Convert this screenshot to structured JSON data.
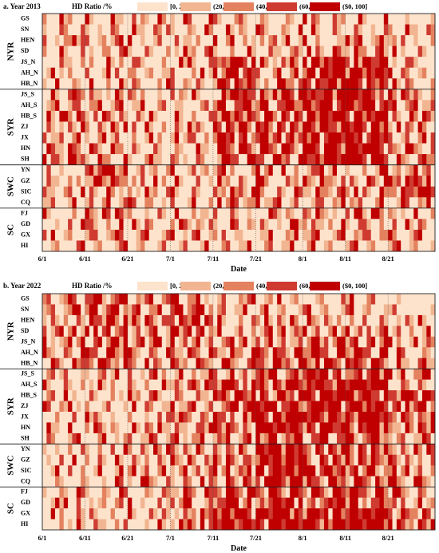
{
  "figure": {
    "legend_title": "HD Ratio /%",
    "xlabel": "Date",
    "bins": [
      {
        "label": "[0, 20]",
        "color": "#fde3cc"
      },
      {
        "label": "(20, 40]",
        "color": "#f2b591"
      },
      {
        "label": "(40, 60]",
        "color": "#e4825f"
      },
      {
        "label": "(60, 80]",
        "color": "#cf3b31"
      },
      {
        "label": "($0, 100]",
        "color": "#c00000"
      }
    ]
  },
  "chart_data": [
    {
      "type": "heatmap",
      "title": "a. Year 2013",
      "xlabel": "Date",
      "x_tick_labels": [
        "6/1",
        "6/11",
        "6/21",
        "7/1",
        "7/11",
        "7/21",
        "8/1",
        "8/11",
        "8/21"
      ],
      "x_range": [
        "6/1",
        "8/31"
      ],
      "groups": [
        {
          "name": "NYR",
          "rows": [
            "GS",
            "SN",
            "HEN",
            "SD",
            "JS_N",
            "AH_N",
            "HB_N"
          ]
        },
        {
          "name": "SYR",
          "rows": [
            "JS_S",
            "AH_S",
            "HB_S",
            "ZJ",
            "JX",
            "HN",
            "SH"
          ]
        },
        {
          "name": "SWC",
          "rows": [
            "YN",
            "GZ",
            "SIC",
            "CQ"
          ]
        },
        {
          "name": "SC",
          "rows": [
            "FJ",
            "GD",
            "GX",
            "HI"
          ]
        }
      ],
      "value_bins": [
        "[0, 20]",
        "(20, 40]",
        "(40, 60]",
        "(60, 80]",
        "($0, 100]"
      ],
      "intensity_by_row_and_period": {
        "rows": [
          "GS",
          "SN",
          "HEN",
          "SD",
          "JS_N",
          "AH_N",
          "HB_N",
          "JS_S",
          "AH_S",
          "HB_S",
          "ZJ",
          "JX",
          "HN",
          "SH",
          "YN",
          "GZ",
          "SIC",
          "CQ",
          "FJ",
          "GD",
          "GX",
          "HI"
        ],
        "periods": [
          "6/1-6/10",
          "6/11-6/20",
          "6/21-6/30",
          "7/1-7/10",
          "7/11-7/20",
          "7/21-7/31",
          "8/1-8/10",
          "8/11-8/20",
          "8/21-8/31"
        ],
        "values": [
          [
            1,
            1,
            1,
            1,
            1,
            1,
            1,
            1,
            0
          ],
          [
            1,
            1,
            1,
            1,
            1,
            1,
            1,
            1,
            1
          ],
          [
            2,
            1,
            1,
            1,
            2,
            1,
            1,
            2,
            1
          ],
          [
            1,
            1,
            1,
            1,
            1,
            1,
            2,
            2,
            1
          ],
          [
            1,
            1,
            1,
            1,
            3,
            2,
            4,
            4,
            1
          ],
          [
            1,
            1,
            1,
            1,
            3,
            2,
            4,
            4,
            1
          ],
          [
            1,
            1,
            1,
            1,
            3,
            2,
            4,
            4,
            1
          ],
          [
            2,
            2,
            1,
            1,
            3,
            3,
            4,
            4,
            2
          ],
          [
            2,
            2,
            1,
            1,
            3,
            3,
            4,
            4,
            2
          ],
          [
            2,
            2,
            1,
            1,
            3,
            3,
            4,
            4,
            2
          ],
          [
            2,
            2,
            1,
            1,
            3,
            3,
            4,
            4,
            2
          ],
          [
            2,
            2,
            1,
            1,
            3,
            3,
            4,
            4,
            2
          ],
          [
            2,
            2,
            1,
            1,
            3,
            3,
            4,
            4,
            2
          ],
          [
            2,
            2,
            1,
            1,
            3,
            3,
            4,
            4,
            2
          ],
          [
            0,
            3,
            1,
            1,
            1,
            2,
            2,
            1,
            2
          ],
          [
            1,
            3,
            1,
            1,
            1,
            2,
            2,
            2,
            3
          ],
          [
            1,
            2,
            1,
            1,
            2,
            2,
            2,
            2,
            3
          ],
          [
            1,
            2,
            1,
            1,
            2,
            2,
            1,
            2,
            1
          ],
          [
            1,
            2,
            1,
            1,
            1,
            1,
            2,
            2,
            1
          ],
          [
            1,
            2,
            1,
            1,
            1,
            1,
            2,
            2,
            1
          ],
          [
            1,
            2,
            1,
            1,
            1,
            1,
            2,
            2,
            1
          ],
          [
            1,
            1,
            1,
            1,
            1,
            1,
            1,
            1,
            1
          ]
        ]
      }
    },
    {
      "type": "heatmap",
      "title": "b. Year 2022",
      "xlabel": "Date",
      "x_tick_labels": [
        "6/1",
        "6/11",
        "6/21",
        "7/1",
        "7/11",
        "7/21",
        "8/1",
        "8/11",
        "8/21"
      ],
      "x_range": [
        "6/1",
        "8/31"
      ],
      "groups": [
        {
          "name": "NYR",
          "rows": [
            "GS",
            "SN",
            "HEN",
            "SD",
            "JS_N",
            "AH_N",
            "HB_N"
          ]
        },
        {
          "name": "SYR",
          "rows": [
            "JS_S",
            "AH_S",
            "HB_S",
            "ZJ",
            "JX",
            "HN",
            "SH"
          ]
        },
        {
          "name": "SWC",
          "rows": [
            "YN",
            "GZ",
            "SIC",
            "CQ"
          ]
        },
        {
          "name": "SC",
          "rows": [
            "FJ",
            "GD",
            "GX",
            "HI"
          ]
        }
      ],
      "value_bins": [
        "[0, 20]",
        "(20, 40]",
        "(40, 60]",
        "(60, 80]",
        "($0, 100]"
      ],
      "intensity_by_row_and_period": {
        "rows": [
          "GS",
          "SN",
          "HEN",
          "SD",
          "JS_N",
          "AH_N",
          "HB_N",
          "JS_S",
          "AH_S",
          "HB_S",
          "ZJ",
          "JX",
          "HN",
          "SH",
          "YN",
          "GZ",
          "SIC",
          "CQ",
          "FJ",
          "GD",
          "GX",
          "HI"
        ],
        "periods": [
          "6/1-6/10",
          "6/11-6/20",
          "6/21-6/30",
          "7/1-7/10",
          "7/11-7/20",
          "7/21-7/31",
          "8/1-8/10",
          "8/11-8/20",
          "8/21-8/31"
        ],
        "values": [
          [
            2,
            3,
            2,
            2,
            1,
            1,
            1,
            1,
            0
          ],
          [
            2,
            3,
            2,
            3,
            1,
            1,
            1,
            1,
            0
          ],
          [
            2,
            3,
            2,
            3,
            1,
            2,
            2,
            1,
            1
          ],
          [
            2,
            3,
            2,
            3,
            1,
            2,
            2,
            2,
            1
          ],
          [
            2,
            3,
            2,
            2,
            2,
            2,
            3,
            3,
            1
          ],
          [
            2,
            3,
            2,
            2,
            2,
            3,
            3,
            3,
            1
          ],
          [
            2,
            3,
            2,
            2,
            2,
            3,
            3,
            3,
            1
          ],
          [
            1,
            1,
            1,
            2,
            2,
            3,
            3,
            3,
            2
          ],
          [
            1,
            1,
            1,
            2,
            3,
            3,
            4,
            4,
            2
          ],
          [
            1,
            1,
            1,
            2,
            3,
            3,
            4,
            4,
            3
          ],
          [
            1,
            1,
            1,
            2,
            3,
            4,
            4,
            4,
            3
          ],
          [
            1,
            1,
            1,
            2,
            3,
            4,
            4,
            4,
            3
          ],
          [
            1,
            1,
            1,
            2,
            3,
            4,
            4,
            4,
            2
          ],
          [
            1,
            1,
            1,
            2,
            2,
            3,
            3,
            3,
            1
          ],
          [
            1,
            1,
            2,
            2,
            2,
            4,
            3,
            3,
            2
          ],
          [
            1,
            1,
            2,
            2,
            2,
            4,
            3,
            3,
            2
          ],
          [
            1,
            1,
            2,
            2,
            2,
            4,
            3,
            3,
            2
          ],
          [
            1,
            1,
            2,
            2,
            2,
            4,
            3,
            3,
            2
          ],
          [
            1,
            1,
            1,
            2,
            3,
            3,
            3,
            3,
            2
          ],
          [
            1,
            1,
            1,
            2,
            3,
            3,
            3,
            3,
            2
          ],
          [
            1,
            1,
            1,
            2,
            4,
            4,
            4,
            4,
            3
          ],
          [
            1,
            1,
            1,
            2,
            4,
            4,
            4,
            4,
            3
          ]
        ]
      }
    }
  ]
}
